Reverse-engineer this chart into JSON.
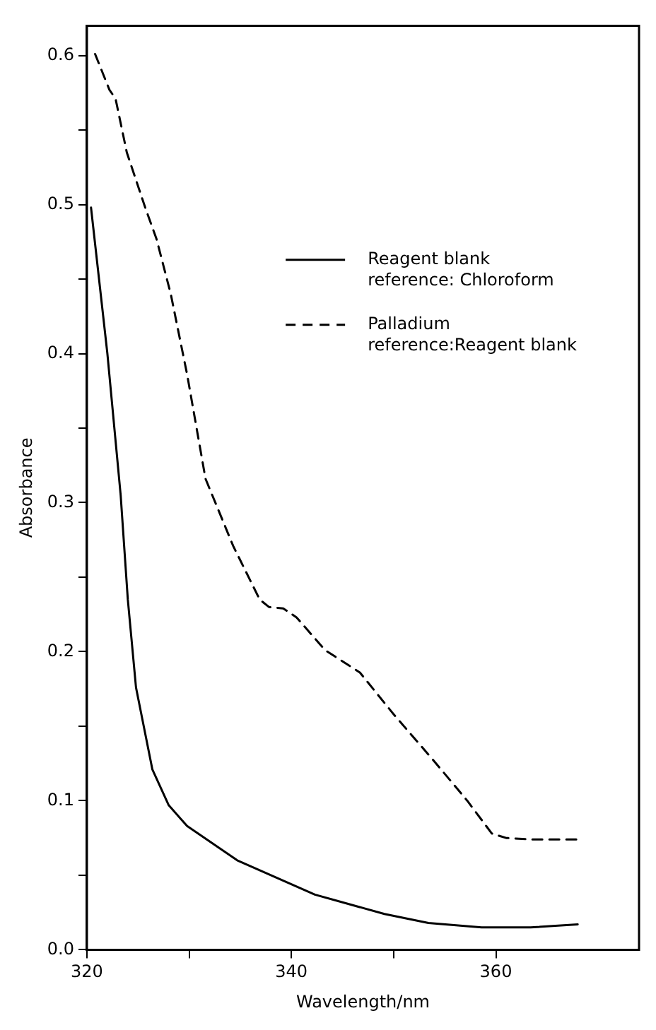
{
  "chart_data": {
    "type": "line",
    "xlabel": "Wavelength/nm",
    "ylabel": "Absorbance",
    "xlim": [
      320,
      374
    ],
    "xticks": [
      320,
      {
        "value": 330,
        "label": null
      },
      340,
      {
        "value": 350,
        "label": null
      },
      360
    ],
    "ylim": [
      0,
      0.62
    ],
    "yticks": [
      {
        "value": 0,
        "label": "0.0"
      },
      {
        "value": 0.05,
        "label": null
      },
      0.1,
      {
        "value": 0.15,
        "label": null
      },
      0.2,
      {
        "value": 0.25,
        "label": null
      },
      0.3,
      {
        "value": 0.35,
        "label": null
      },
      0.4,
      {
        "value": 0.45,
        "label": null
      },
      0.5,
      {
        "value": 0.55,
        "label": null
      },
      0.6
    ],
    "grid": false,
    "legend": "right",
    "marker": "none",
    "series": [
      {
        "name": "Reagent blank\nreference: Chloroform",
        "color": "#000000",
        "line_style": "solid",
        "x": [
          320.4,
          322,
          323.3,
          324,
          324.8,
          326.4,
          328,
          329.8,
          334.7,
          342.3,
          349.1,
          353.4,
          358.6,
          363.4,
          368
        ],
        "values": [
          0.498,
          0.4,
          0.305,
          0.235,
          0.176,
          0.121,
          0.097,
          0.083,
          0.06,
          0.037,
          0.024,
          0.018,
          0.015,
          0.015,
          0.017
        ]
      },
      {
        "name": "Palladium\nreference:Reagent blank",
        "color": "#000000",
        "line_style": "dashed",
        "x": [
          320.8,
          322.2,
          322.8,
          323.9,
          325.7,
          326.8,
          328.2,
          329.8,
          331.6,
          334.3,
          336.9,
          337.8,
          339.2,
          340.5,
          343.3,
          346.7,
          350,
          353.9,
          357.2,
          359.6,
          361,
          363.4,
          368.2
        ],
        "values": [
          0.601,
          0.577,
          0.571,
          0.535,
          0.498,
          0.477,
          0.44,
          0.386,
          0.316,
          0.271,
          0.235,
          0.23,
          0.229,
          0.223,
          0.201,
          0.186,
          0.158,
          0.127,
          0.1,
          0.078,
          0.075,
          0.074,
          0.074
        ]
      }
    ]
  }
}
